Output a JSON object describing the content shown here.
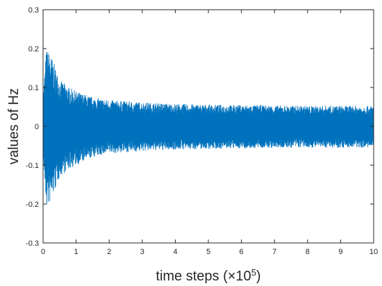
{
  "chart_data": {
    "type": "line",
    "title": "",
    "xlabel": "time steps (×10",
    "xlabel_exponent": "5",
    "xlabel_close": ")",
    "ylabel": "values of Hz",
    "xlim": [
      0,
      10
    ],
    "ylim": [
      -0.3,
      0.3
    ],
    "x_ticks": [
      "0",
      "1",
      "2",
      "3",
      "4",
      "5",
      "6",
      "7",
      "8",
      "9",
      "10"
    ],
    "y_ticks": [
      "0.3",
      "0.2",
      "0.1",
      "0",
      "-0.1",
      "-0.2",
      "-0.3"
    ],
    "grid": false,
    "legend": "none",
    "series": [
      {
        "color": "#0072BD",
        "envelope": {
          "x": [
            0,
            0.1,
            0.2,
            0.3,
            0.5,
            0.8,
            1.0,
            1.5,
            2.0,
            3.0,
            4.0,
            5.0,
            6.0,
            7.0,
            8.0,
            9.0,
            10.0
          ],
          "upper": [
            0.08,
            0.2,
            0.19,
            0.17,
            0.12,
            0.1,
            0.09,
            0.075,
            0.068,
            0.062,
            0.058,
            0.056,
            0.055,
            0.054,
            0.053,
            0.053,
            0.053
          ],
          "lower": [
            -0.08,
            -0.21,
            -0.2,
            -0.18,
            -0.13,
            -0.11,
            -0.1,
            -0.08,
            -0.07,
            -0.064,
            -0.06,
            -0.058,
            -0.057,
            -0.056,
            -0.055,
            -0.055,
            -0.055
          ]
        }
      }
    ]
  }
}
